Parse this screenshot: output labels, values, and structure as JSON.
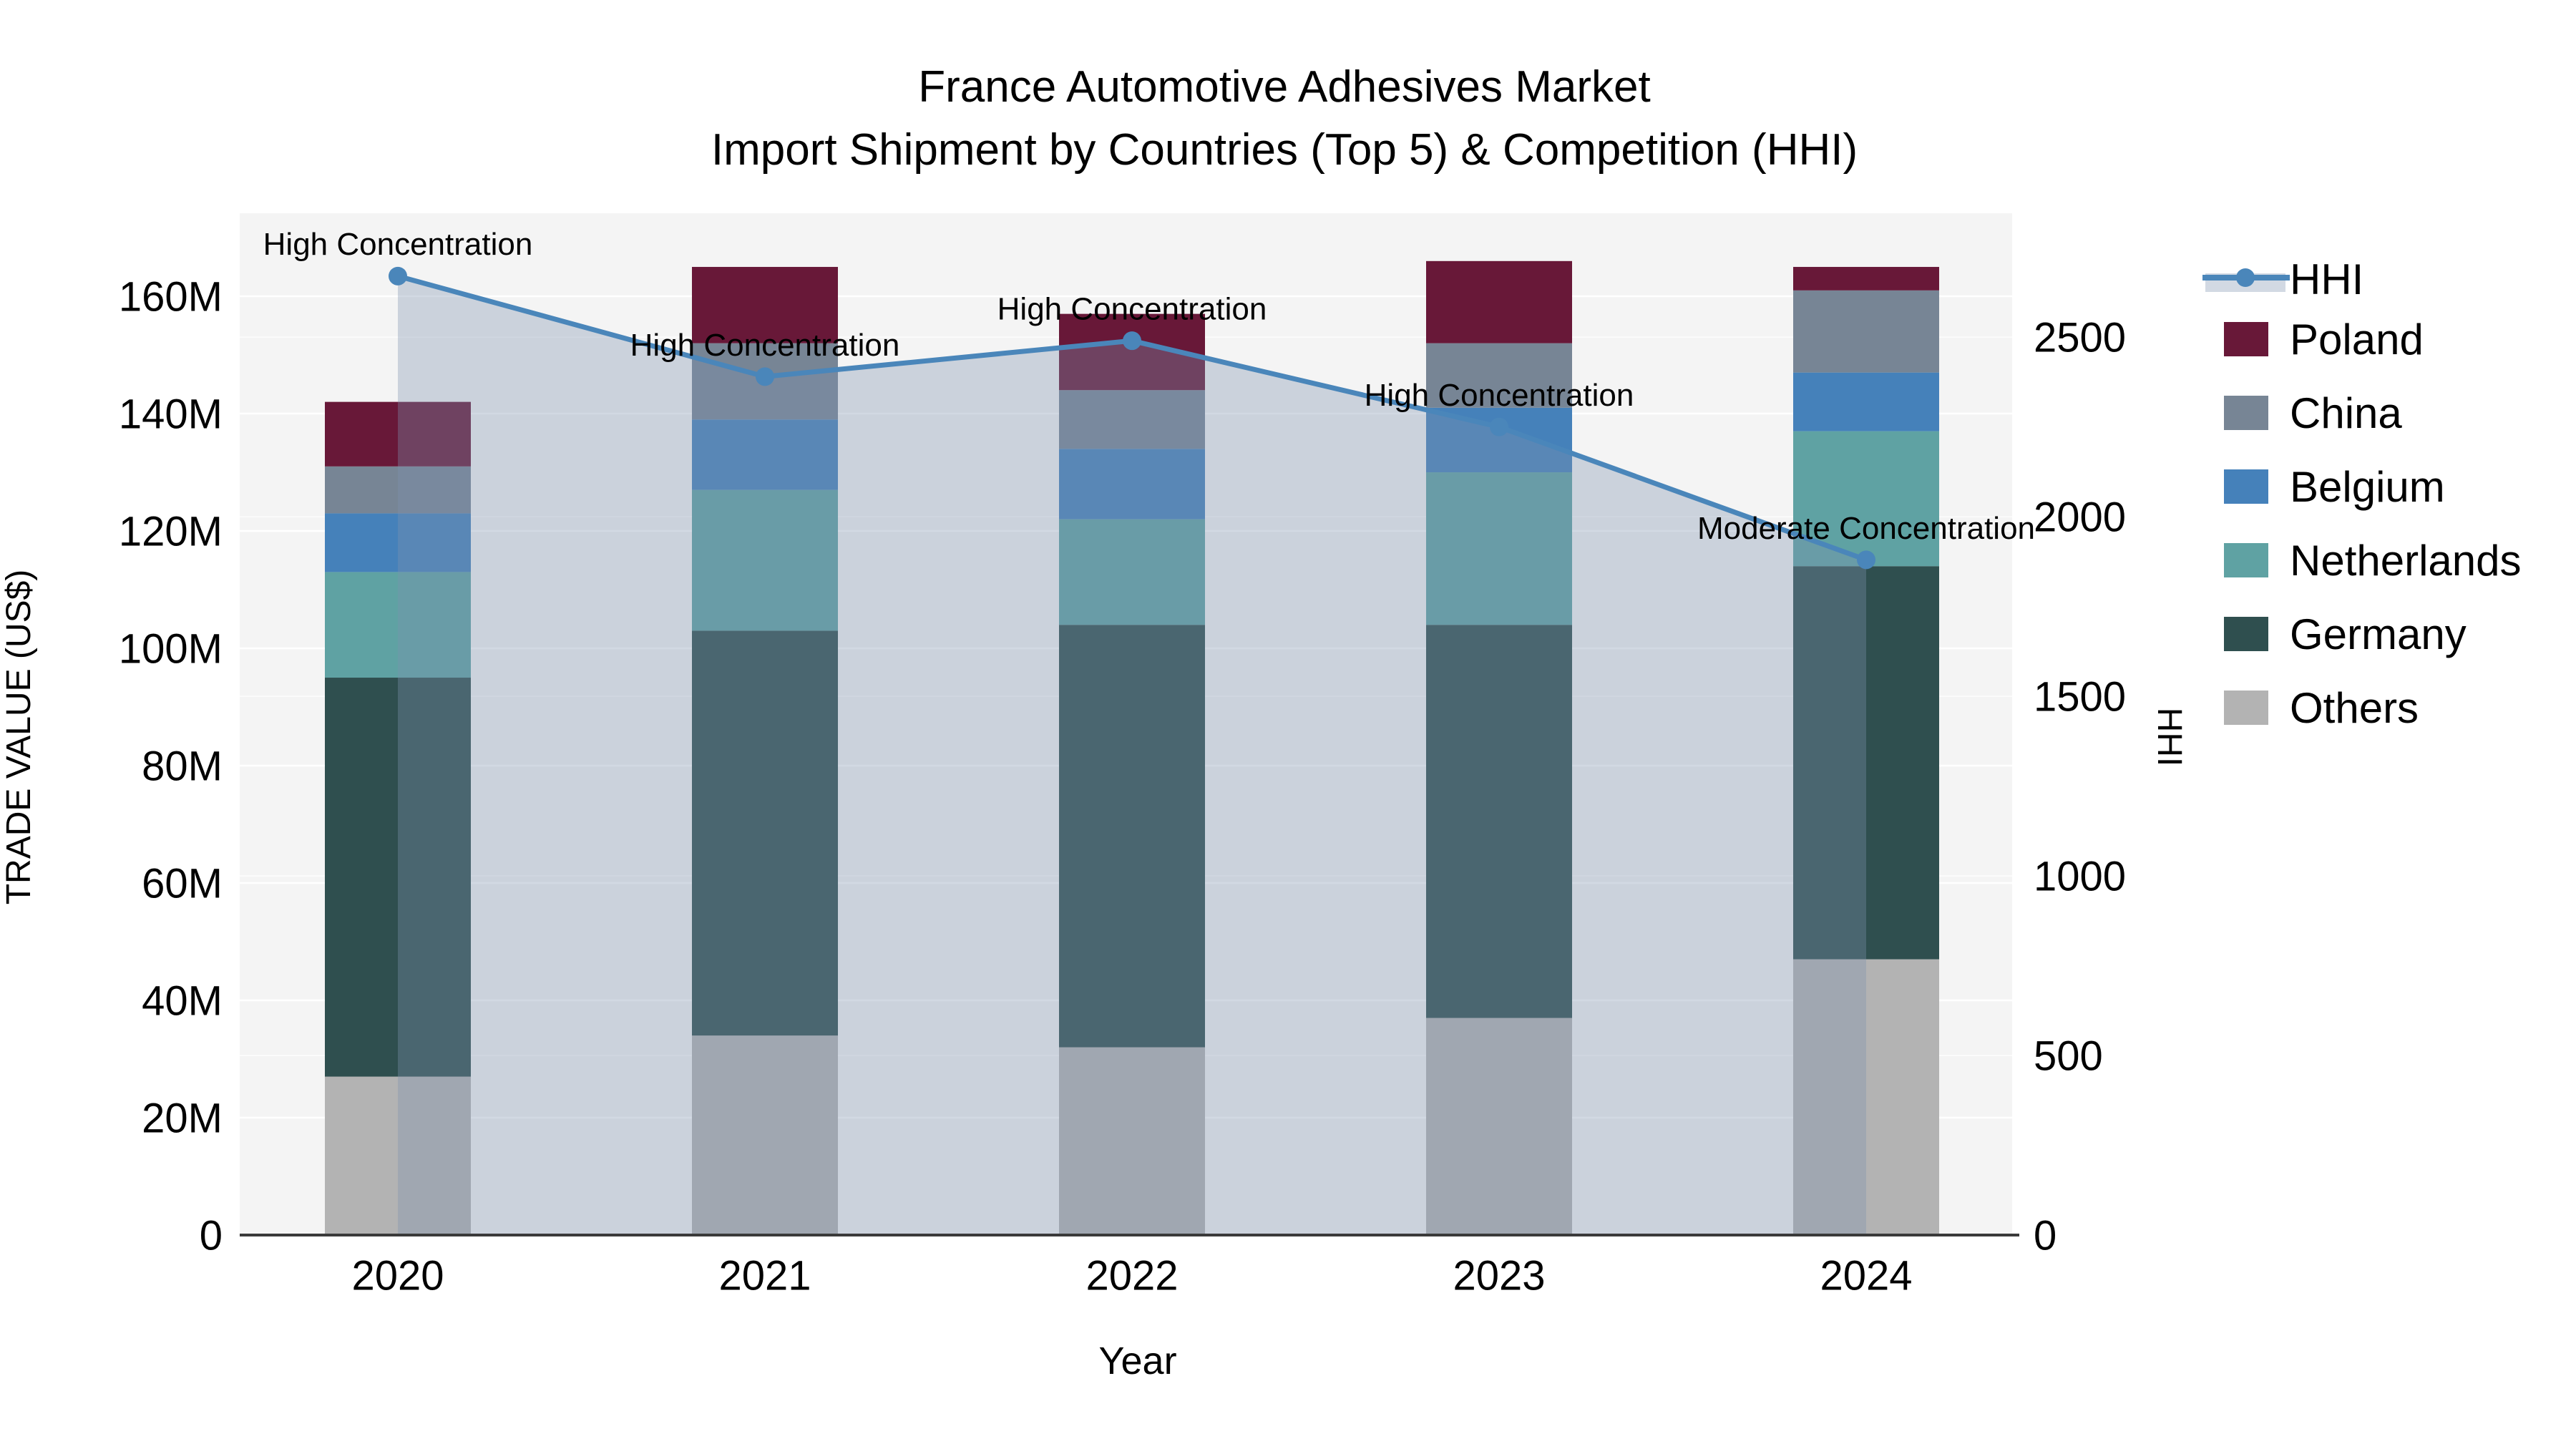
{
  "title": {
    "line1": "France Automotive Adhesives Market",
    "line2": "Import Shipment by Countries (Top 5) & Competition (HHI)"
  },
  "chart_data": {
    "type": "bar",
    "subtype": "stacked-bar-with-line-overlay",
    "categories": [
      "2020",
      "2021",
      "2022",
      "2023",
      "2024"
    ],
    "value_unit": "US$ millions",
    "series": [
      {
        "name": "Others",
        "color": "#b3b3b3",
        "values": [
          27,
          34,
          32,
          37,
          47
        ]
      },
      {
        "name": "Germany",
        "color": "#2f4f4f",
        "values": [
          68,
          69,
          72,
          67,
          67
        ]
      },
      {
        "name": "Netherlands",
        "color": "#5fa2a3",
        "values": [
          18,
          24,
          18,
          26,
          23
        ]
      },
      {
        "name": "Belgium",
        "color": "#4581ba",
        "values": [
          10,
          12,
          12,
          11,
          10
        ]
      },
      {
        "name": "China",
        "color": "#778595",
        "values": [
          8,
          13,
          10,
          11,
          14
        ]
      },
      {
        "name": "Poland",
        "color": "#681838",
        "values": [
          11,
          13,
          13,
          14,
          4
        ]
      }
    ],
    "stack_totals_millions": [
      142,
      165,
      157,
      166,
      165
    ],
    "line_series": {
      "name": "HHI",
      "color": "#4a86ba",
      "area_color": "rgba(127,147,176,0.35)",
      "values": [
        2670,
        2390,
        2490,
        2250,
        1880
      ]
    },
    "annotations": [
      {
        "category": "2020",
        "label": "High Concentration"
      },
      {
        "category": "2021",
        "label": "High Concentration"
      },
      {
        "category": "2022",
        "label": "High Concentration"
      },
      {
        "category": "2023",
        "label": "High Concentration"
      },
      {
        "category": "2024",
        "label": "Moderate Concentration"
      }
    ],
    "xlabel": "Year",
    "ylabel": "TRADE VALUE (US$)",
    "y2label": "HHI",
    "ylim_millions": [
      0,
      174.15
    ],
    "y2lim": [
      0,
      2845
    ],
    "yticks": [
      {
        "value": 0,
        "label": "0"
      },
      {
        "value": 20,
        "label": "20M"
      },
      {
        "value": 40,
        "label": "40M"
      },
      {
        "value": 60,
        "label": "60M"
      },
      {
        "value": 80,
        "label": "80M"
      },
      {
        "value": 100,
        "label": "100M"
      },
      {
        "value": 120,
        "label": "120M"
      },
      {
        "value": 140,
        "label": "140M"
      },
      {
        "value": 160,
        "label": "160M"
      }
    ],
    "y2ticks": [
      {
        "value": 0,
        "label": "0"
      },
      {
        "value": 500,
        "label": "500"
      },
      {
        "value": 1000,
        "label": "1000"
      },
      {
        "value": 1500,
        "label": "1500"
      },
      {
        "value": 2000,
        "label": "2000"
      },
      {
        "value": 2500,
        "label": "2500"
      }
    ],
    "legend_order": [
      "HHI",
      "Poland",
      "China",
      "Belgium",
      "Netherlands",
      "Germany",
      "Others"
    ],
    "grid": true,
    "legend_position": "right"
  }
}
